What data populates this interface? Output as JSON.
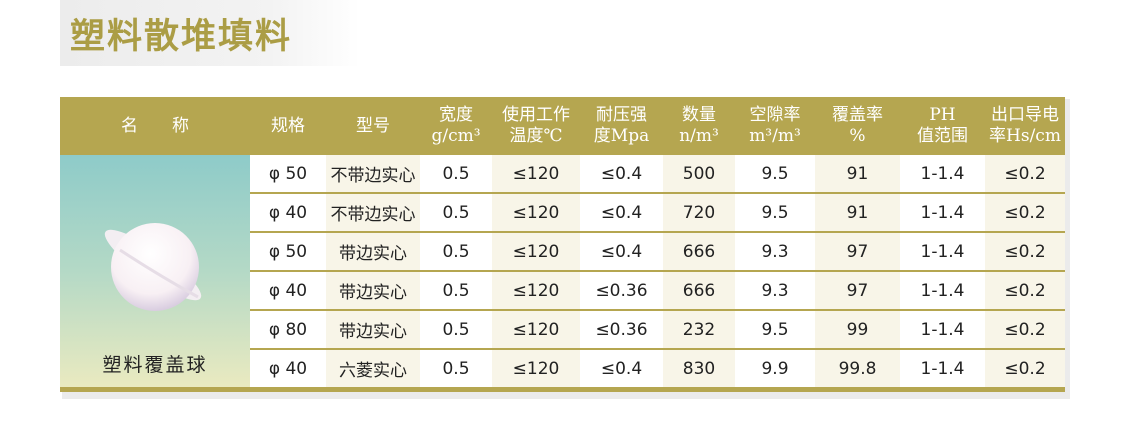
{
  "title": "塑料散堆填料",
  "product": {
    "name": "塑料覆盖球",
    "image_icon": "plastic-cover-ball-image"
  },
  "colors": {
    "accent": "#b5a650",
    "title": "#ab9d45"
  },
  "table": {
    "headers": [
      {
        "l1": "名　　称",
        "l2": ""
      },
      {
        "l1": "规格",
        "l2": ""
      },
      {
        "l1": "型号",
        "l2": ""
      },
      {
        "l1": "宽度",
        "l2": "g/cm³"
      },
      {
        "l1": "使用工作",
        "l2": "温度℃"
      },
      {
        "l1": "耐压强",
        "l2": "度Mpa"
      },
      {
        "l1": "数量",
        "l2": "n/m³"
      },
      {
        "l1": "空隙率",
        "l2": "m³/m³"
      },
      {
        "l1": "覆盖率",
        "l2": "%"
      },
      {
        "l1": "PH",
        "l2": "值范围"
      },
      {
        "l1": "出口导电",
        "l2": "率Hs/cm"
      }
    ],
    "rows": [
      [
        "φ 50",
        "不带边实心",
        "0.5",
        "≤120",
        "≤0.4",
        "500",
        "9.5",
        "91",
        "1-1.4",
        "≤0.2"
      ],
      [
        "φ 40",
        "不带边实心",
        "0.5",
        "≤120",
        "≤0.4",
        "720",
        "9.5",
        "91",
        "1-1.4",
        "≤0.2"
      ],
      [
        "φ 50",
        "带边实心",
        "0.5",
        "≤120",
        "≤0.4",
        "666",
        "9.3",
        "97",
        "1-1.4",
        "≤0.2"
      ],
      [
        "φ 40",
        "带边实心",
        "0.5",
        "≤120",
        "≤0.36",
        "666",
        "9.3",
        "97",
        "1-1.4",
        "≤0.2"
      ],
      [
        "φ 80",
        "带边实心",
        "0.5",
        "≤120",
        "≤0.36",
        "232",
        "9.5",
        "99",
        "1-1.4",
        "≤0.2"
      ],
      [
        "φ 40",
        "六菱实心",
        "0.5",
        "≤120",
        "≤0.4",
        "830",
        "9.9",
        "99.8",
        "1-1.4",
        "≤0.2"
      ]
    ]
  }
}
